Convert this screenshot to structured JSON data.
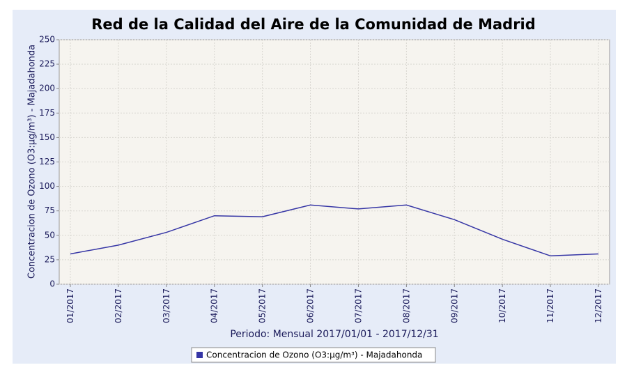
{
  "chart_data": {
    "type": "line",
    "title": "Red de la Calidad del Aire de la Comunidad de Madrid",
    "x_label": "Periodo: Mensual 2017/01/01 - 2017/12/31",
    "y_label": "Concentracion de Ozono (O3:µg/m³) - Majadahonda",
    "categories": [
      "01/2017",
      "02/2017",
      "03/2017",
      "04/2017",
      "05/2017",
      "06/2017",
      "07/2017",
      "08/2017",
      "09/2017",
      "10/2017",
      "11/2017",
      "12/2017"
    ],
    "series": [
      {
        "name": "Concentracion de Ozono (O3:µg/m³) - Majadahonda",
        "color": "#3535a5",
        "values": [
          31,
          40,
          53,
          70,
          69,
          81,
          77,
          81,
          66,
          46,
          29,
          31
        ]
      }
    ],
    "ylim": [
      0,
      250
    ],
    "yticks": [
      0,
      25,
      50,
      75,
      100,
      125,
      150,
      175,
      200,
      225,
      250
    ],
    "grid": true
  }
}
